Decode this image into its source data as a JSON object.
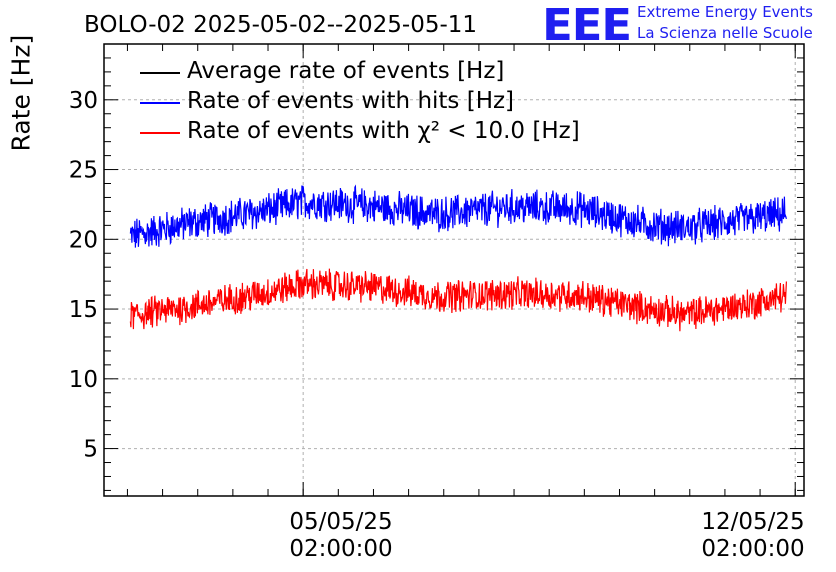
{
  "header": {
    "title": "BOLO-02 2025-05-02--2025-05-11"
  },
  "logo": {
    "mark": "EEE",
    "line1": "Extreme Energy Events",
    "line2": "La Scienza nelle Scuole",
    "color": "#1f1ff0"
  },
  "chart_data": {
    "type": "line",
    "ylabel": "Rate [Hz]",
    "ylim": [
      1.6,
      34
    ],
    "yticks": [
      5,
      10,
      15,
      20,
      25,
      30
    ],
    "xlim": [
      "2025-05-02T06:00:00",
      "2025-05-12T05:00:00"
    ],
    "xticks": [
      {
        "date": "05/05/25",
        "time": "02:00:00"
      },
      {
        "date": "12/05/25",
        "time": "02:00:00"
      }
    ],
    "grid": true,
    "legend_position": "top-left",
    "series": [
      {
        "name": "Average rate of events [Hz]",
        "color": "#000000",
        "x": [],
        "values": []
      },
      {
        "name": "Rate of events with hits [Hz]",
        "color": "#0000ff",
        "x": [
          "2025-05-02T15:00",
          "2025-05-03T12:00",
          "2025-05-04T12:00",
          "2025-05-05T02:00",
          "2025-05-06T00:00",
          "2025-05-07T00:00",
          "2025-05-08T00:00",
          "2025-05-09T00:00",
          "2025-05-10T00:00",
          "2025-05-10T12:00",
          "2025-05-11T12:00",
          "2025-05-11T23:00"
        ],
        "values": [
          20.2,
          21.2,
          22.0,
          22.7,
          22.4,
          21.8,
          22.3,
          22.2,
          21.0,
          20.8,
          21.5,
          21.8
        ],
        "spread": 1.1
      },
      {
        "name": "Rate of events with χ² < 10.0 [Hz]",
        "color": "#ff0000",
        "x": [
          "2025-05-02T15:00",
          "2025-05-03T12:00",
          "2025-05-04T12:00",
          "2025-05-05T02:00",
          "2025-05-06T00:00",
          "2025-05-07T00:00",
          "2025-05-08T00:00",
          "2025-05-09T00:00",
          "2025-05-10T00:00",
          "2025-05-10T12:00",
          "2025-05-11T12:00",
          "2025-05-11T23:00"
        ],
        "values": [
          14.5,
          15.2,
          16.1,
          16.8,
          16.6,
          15.9,
          16.1,
          16.0,
          15.0,
          14.6,
          15.4,
          16.0
        ],
        "spread": 1.0
      }
    ]
  }
}
